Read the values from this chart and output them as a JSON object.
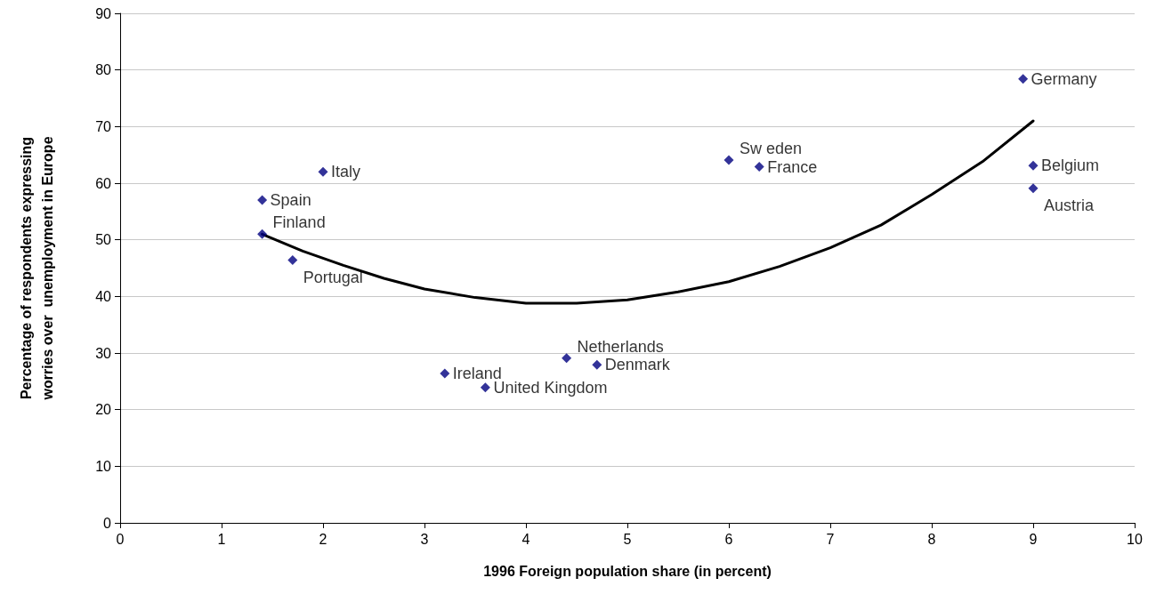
{
  "chart_data": {
    "type": "scatter",
    "xlabel": "1996 Foreign population share (in percent)",
    "ylabel": "Percentage of respondents expressing\nworries over  unemployment in Europe",
    "x": [
      8.9,
      6.0,
      6.3,
      9.0,
      9.0,
      2.0,
      1.4,
      1.4,
      1.7,
      4.4,
      3.2,
      4.7,
      3.6
    ],
    "series": [
      {
        "color": "#000080",
        "marker": "diamond",
        "values": [
          78.4,
          64.1,
          62.9,
          63.1,
          59.1,
          62.0,
          57.0,
          51.0,
          46.4,
          29.1,
          26.4,
          27.9,
          23.9
        ]
      },
      {
        "type": "line",
        "color": "#000000",
        "marker": "none",
        "line_style": "solid",
        "x": [
          1.4,
          1.8,
          2.2,
          2.6,
          3.0,
          3.5,
          4.0,
          4.5,
          5.0,
          5.5,
          6.0,
          6.5,
          7.0,
          7.5,
          8.0,
          8.5,
          9.0
        ],
        "values": [
          51.0,
          48.0,
          45.5,
          43.2,
          41.3,
          39.8,
          38.8,
          38.8,
          39.4,
          40.8,
          42.6,
          45.3,
          48.6,
          52.6,
          58.0,
          63.8,
          71.0
        ]
      }
    ],
    "annotations": [
      {
        "text": "Germany",
        "x": 8.9,
        "y": 78.4
      },
      {
        "text": "Sw eden",
        "x": 6.0,
        "y": 64.1
      },
      {
        "text": "France",
        "x": 6.3,
        "y": 62.9
      },
      {
        "text": "Belgium",
        "x": 9.0,
        "y": 63.1
      },
      {
        "text": "Austria",
        "x": 9.0,
        "y": 59.1
      },
      {
        "text": "Italy",
        "x": 2.0,
        "y": 62.0
      },
      {
        "text": "Spain",
        "x": 1.4,
        "y": 57.0
      },
      {
        "text": "Finland",
        "x": 1.4,
        "y": 51.0
      },
      {
        "text": "Portugal",
        "x": 1.7,
        "y": 46.4
      },
      {
        "text": "Netherlands",
        "x": 4.4,
        "y": 29.1
      },
      {
        "text": "Ireland",
        "x": 3.2,
        "y": 26.4
      },
      {
        "text": "Denmark",
        "x": 4.7,
        "y": 27.9
      },
      {
        "text": "United Kingdom",
        "x": 3.6,
        "y": 23.9
      }
    ],
    "xlim": [
      0,
      10
    ],
    "xticks": [
      0,
      1,
      2,
      3,
      4,
      5,
      6,
      7,
      8,
      9,
      10
    ],
    "ylim": [
      0,
      90
    ],
    "yticks": [
      0,
      10,
      20,
      30,
      40,
      50,
      60,
      70,
      80,
      90
    ],
    "grid": "y"
  }
}
